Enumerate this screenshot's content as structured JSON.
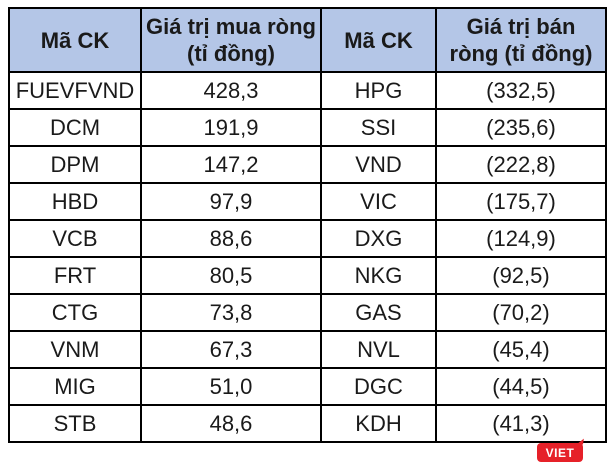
{
  "table": {
    "headers": [
      "Mã CK",
      "Giá trị mua ròng (tỉ đồng)",
      "Mã CK",
      "Giá trị bán ròng (tỉ đồng)"
    ],
    "rows": [
      [
        "FUEVFVND",
        "428,3",
        "HPG",
        "(332,5)"
      ],
      [
        "DCM",
        "191,9",
        "SSI",
        "(235,6)"
      ],
      [
        "DPM",
        "147,2",
        "VND",
        "(222,8)"
      ],
      [
        "HBD",
        "97,9",
        "VIC",
        "(175,7)"
      ],
      [
        "VCB",
        "88,6",
        "DXG",
        "(124,9)"
      ],
      [
        "FRT",
        "80,5",
        "NKG",
        "(92,5)"
      ],
      [
        "CTG",
        "73,8",
        "GAS",
        "(70,2)"
      ],
      [
        "VNM",
        "67,3",
        "NVL",
        "(45,4)"
      ],
      [
        "MIG",
        "51,0",
        "DGC",
        "(44,5)"
      ],
      [
        "STB",
        "48,6",
        "KDH",
        "(41,3)"
      ]
    ]
  },
  "chart_data": {
    "type": "table",
    "columns": [
      "Mã CK",
      "Giá trị mua ròng (tỉ đồng)",
      "Mã CK",
      "Giá trị bán ròng (tỉ đồng)"
    ],
    "series": [
      {
        "name": "Giá trị mua ròng (tỉ đồng)",
        "tickers": [
          "FUEVFVND",
          "DCM",
          "DPM",
          "HBD",
          "VCB",
          "FRT",
          "CTG",
          "VNM",
          "MIG",
          "STB"
        ],
        "values": [
          428.3,
          191.9,
          147.2,
          97.9,
          88.6,
          80.5,
          73.8,
          67.3,
          51.0,
          48.6
        ]
      },
      {
        "name": "Giá trị bán ròng (tỉ đồng)",
        "tickers": [
          "HPG",
          "SSI",
          "VND",
          "VIC",
          "DXG",
          "NKG",
          "GAS",
          "NVL",
          "DGC",
          "KDH"
        ],
        "values": [
          -332.5,
          -235.6,
          -222.8,
          -175.7,
          -124.9,
          -92.5,
          -70.2,
          -45.4,
          -44.5,
          -41.3
        ]
      }
    ],
    "layout": "two side-by-side ticker/value column pairs, negatives shown in parentheses, comma decimal separator"
  },
  "watermark": {
    "label": "VIET",
    "color": "#e62129"
  },
  "colors": {
    "header_bg": "#b4c6e7",
    "border": "#000000",
    "text": "#1a1a1a",
    "row_bg": "#ffffff"
  }
}
